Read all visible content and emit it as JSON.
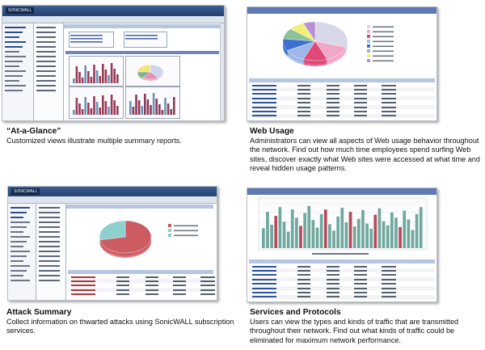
{
  "sections": {
    "glance": {
      "title": "“At-a-Glance”",
      "desc": "Customized views illustrate multiple summary reports."
    },
    "web": {
      "title": "Web Usage",
      "desc": "Administrators can view all aspects of Web usage behavior throughout the network. Find out how much time employees spend surfing Web sites, discover exactly what Web sites were accessed at what time and reveal hidden usage patterns."
    },
    "attack": {
      "title": "Attack Summary",
      "desc": "Collect information on thwarted attacks using SonicWALL subscription services."
    },
    "services": {
      "title": "Services and Protocols",
      "desc": "Users can view the types and kinds of traffic that are transmitted throughout their network. Find out what kinds of traffic could be eliminated for maximum network performance."
    }
  },
  "colors": {
    "chrome": "#2f4f82",
    "pie_red": "#c9555c",
    "pie_teal": "#7ec9c6",
    "bar_teal": "#6fa89e",
    "bar_red": "#b54a5a"
  },
  "web_pie": [
    {
      "value": 30,
      "color": "#d8d8e8"
    },
    {
      "value": 14,
      "color": "#f0a8c8"
    },
    {
      "value": 12,
      "color": "#e04878"
    },
    {
      "value": 11,
      "color": "#9fb7e6"
    },
    {
      "value": 10,
      "color": "#3f6fd0"
    },
    {
      "value": 9,
      "color": "#8cc29a"
    },
    {
      "value": 8,
      "color": "#f2ef7a"
    },
    {
      "value": 6,
      "color": "#b98fd8"
    }
  ],
  "attack_pie": [
    {
      "value": 72,
      "color": "#cc5b62"
    },
    {
      "value": 28,
      "color": "#8dd0ce"
    }
  ],
  "services_bars": [
    34,
    62,
    40,
    55,
    70,
    45,
    28,
    66,
    52,
    38,
    60,
    72,
    48,
    35,
    58,
    66,
    41,
    30,
    54,
    69,
    44,
    62,
    37,
    50,
    65,
    42,
    33,
    57,
    68,
    46,
    39,
    61,
    52,
    36,
    64,
    49,
    31,
    58,
    70
  ]
}
